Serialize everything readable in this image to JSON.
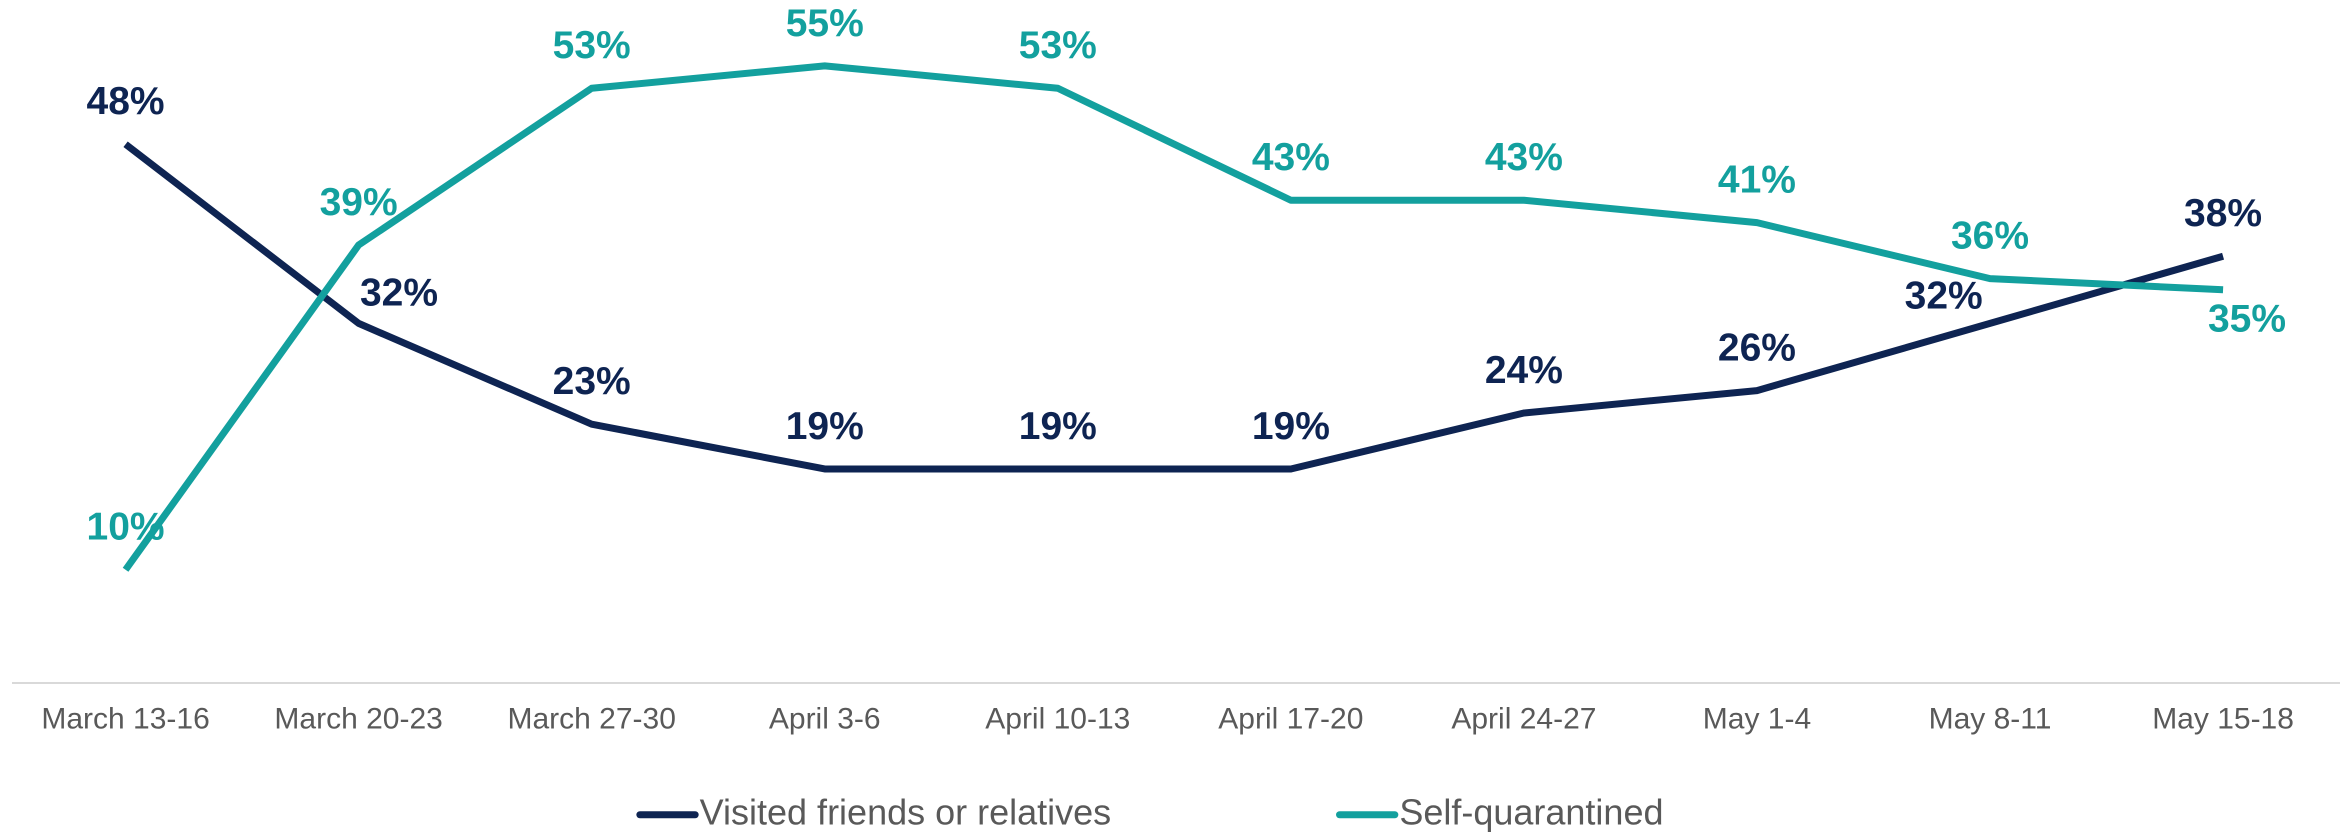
{
  "chart_data": {
    "type": "line",
    "categories": [
      "March 13-16",
      "March 20-23",
      "March 27-30",
      "April 3-6",
      "April 10-13",
      "April 17-20",
      "April 24-27",
      "May 1-4",
      "May 8-11",
      "May 15-18"
    ],
    "series": [
      {
        "name": "Visited friends or relatives",
        "color": "#0e2452",
        "values": [
          48,
          32,
          23,
          19,
          19,
          19,
          24,
          26,
          32,
          38
        ],
        "value_labels": [
          "48%",
          "32%",
          "23%",
          "19%",
          "19%",
          "19%",
          "24%",
          "26%",
          "32%",
          "38%"
        ]
      },
      {
        "name": "Self-quarantined",
        "color": "#13a09e",
        "values": [
          10,
          39,
          53,
          55,
          53,
          43,
          43,
          41,
          36,
          35
        ],
        "value_labels": [
          "10%",
          "39%",
          "53%",
          "55%",
          "53%",
          "43%",
          "43%",
          "41%",
          "36%",
          "35%"
        ]
      }
    ],
    "ylim": [
      0,
      60
    ]
  }
}
